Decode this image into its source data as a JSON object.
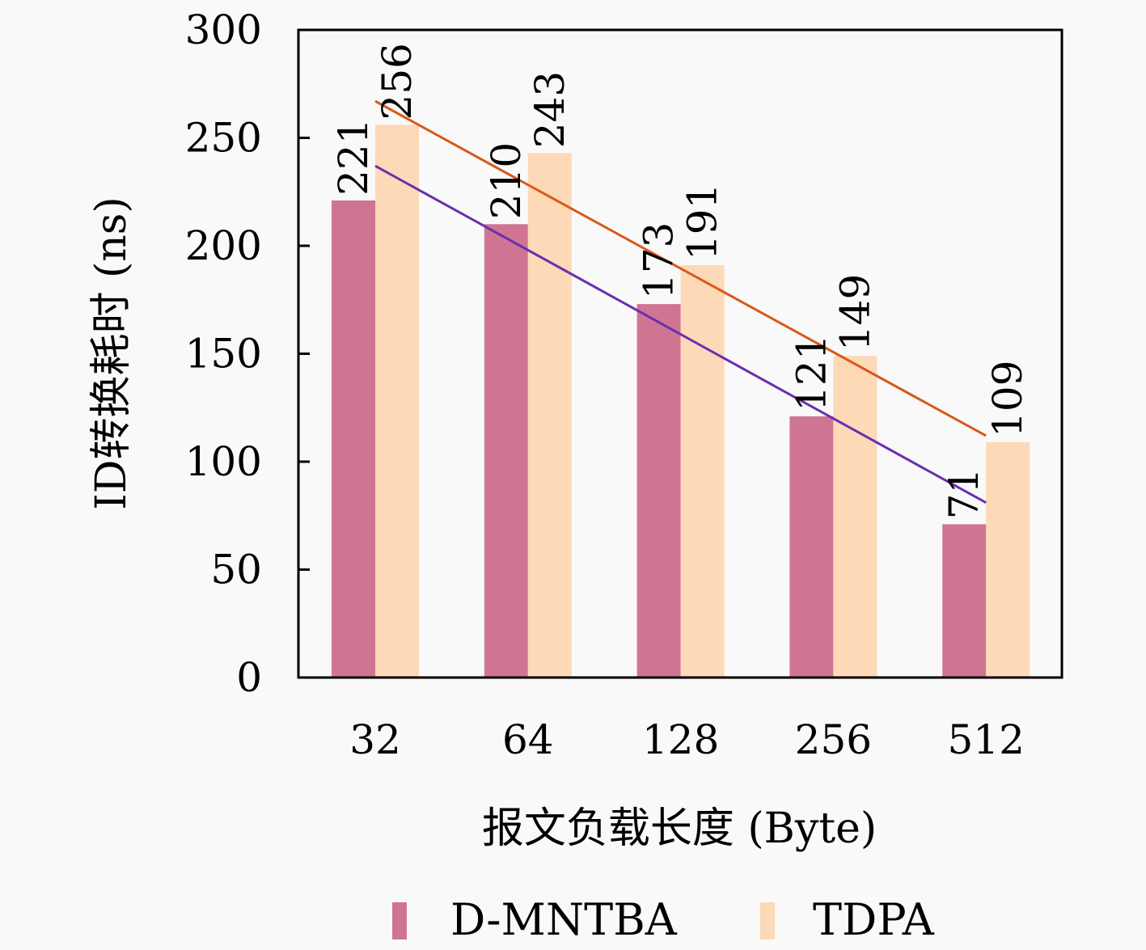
{
  "chart_data": {
    "type": "bar",
    "title": "",
    "xlabel": "报文负载长度 (Byte)",
    "ylabel": "ID转换耗时 (ns)",
    "categories": [
      "32",
      "64",
      "128",
      "256",
      "512"
    ],
    "ylim": [
      0,
      300
    ],
    "yticks": [
      0,
      50,
      100,
      150,
      200,
      250,
      300
    ],
    "grid": false,
    "legend_position": "bottom",
    "series": [
      {
        "name": "D-MNTBA",
        "color": "#cf7593",
        "values": [
          221,
          210,
          173,
          121,
          71
        ]
      },
      {
        "name": "TDPA",
        "color": "#fdd9b7",
        "values": [
          256,
          243,
          191,
          149,
          109
        ]
      }
    ],
    "trend_lines": [
      {
        "series": "D-MNTBA",
        "color": "#6a2fb0",
        "from": {
          "category": "32",
          "value": 237
        },
        "to": {
          "category": "512",
          "value": 81
        }
      },
      {
        "series": "TDPA",
        "color": "#d9581a",
        "from": {
          "category": "32",
          "value": 267
        },
        "to": {
          "category": "512",
          "value": 112
        }
      }
    ]
  }
}
